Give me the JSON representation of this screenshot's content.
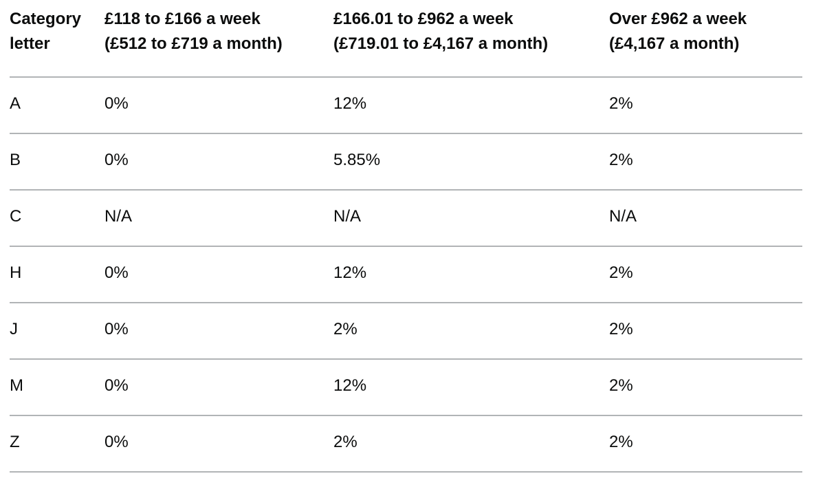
{
  "table": {
    "columns": [
      {
        "line1": "Category",
        "line2": "letter"
      },
      {
        "line1": "£118 to £166 a week",
        "line2": "(£512 to £719 a month)"
      },
      {
        "line1": "£166.01 to £962 a week",
        "line2": "(£719.01 to £4,167 a month)"
      },
      {
        "line1": "Over £962 a week",
        "line2": "(£4,167 a month)"
      }
    ],
    "rows": [
      {
        "letter": "A",
        "values": [
          "0%",
          "12%",
          "2%"
        ]
      },
      {
        "letter": "B",
        "values": [
          "0%",
          "5.85%",
          "2%"
        ]
      },
      {
        "letter": "C",
        "values": [
          "N/A",
          "N/A",
          "N/A"
        ]
      },
      {
        "letter": "H",
        "values": [
          "0%",
          "12%",
          "2%"
        ]
      },
      {
        "letter": "J",
        "values": [
          "0%",
          "2%",
          "2%"
        ]
      },
      {
        "letter": "M",
        "values": [
          "0%",
          "12%",
          "2%"
        ]
      },
      {
        "letter": "Z",
        "values": [
          "0%",
          "2%",
          "2%"
        ]
      }
    ]
  },
  "colors": {
    "text": "#0b0c0c",
    "border": "#b1b4b6",
    "background": "#ffffff"
  }
}
